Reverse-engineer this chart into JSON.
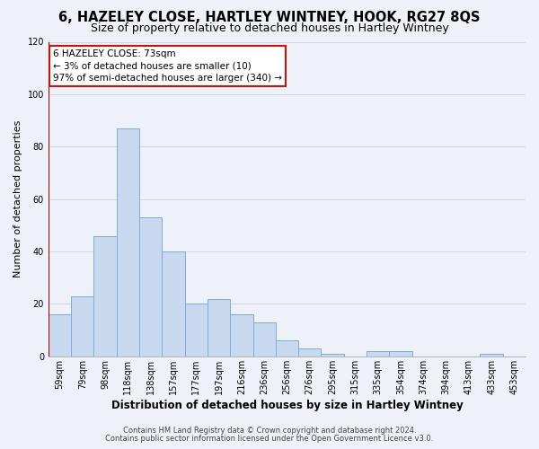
{
  "title": "6, HAZELEY CLOSE, HARTLEY WINTNEY, HOOK, RG27 8QS",
  "subtitle": "Size of property relative to detached houses in Hartley Wintney",
  "xlabel": "Distribution of detached houses by size in Hartley Wintney",
  "ylabel": "Number of detached properties",
  "bar_labels": [
    "59sqm",
    "79sqm",
    "98sqm",
    "118sqm",
    "138sqm",
    "157sqm",
    "177sqm",
    "197sqm",
    "216sqm",
    "236sqm",
    "256sqm",
    "276sqm",
    "295sqm",
    "315sqm",
    "335sqm",
    "354sqm",
    "374sqm",
    "394sqm",
    "413sqm",
    "433sqm",
    "453sqm"
  ],
  "bar_values": [
    16,
    23,
    46,
    87,
    53,
    40,
    20,
    22,
    16,
    13,
    6,
    3,
    1,
    0,
    2,
    2,
    0,
    0,
    0,
    1,
    0
  ],
  "bar_color": "#c8d8ef",
  "bar_edge_color": "#7aaed4",
  "annotation_box_text": "6 HAZELEY CLOSE: 73sqm\n← 3% of detached houses are smaller (10)\n97% of semi-detached houses are larger (340) →",
  "vline_color": "#aa0000",
  "vline_x": 0.42,
  "ylim": [
    0,
    120
  ],
  "yticks": [
    0,
    20,
    40,
    60,
    80,
    100,
    120
  ],
  "footnote1": "Contains HM Land Registry data © Crown copyright and database right 2024.",
  "footnote2": "Contains public sector information licensed under the Open Government Licence v3.0.",
  "background_color": "#eef2f8",
  "grid_color": "#d0d8e8",
  "title_fontsize": 10.5,
  "subtitle_fontsize": 9,
  "xlabel_fontsize": 8.5,
  "ylabel_fontsize": 8,
  "tick_fontsize": 7,
  "annot_fontsize": 7.5,
  "footnote_fontsize": 6
}
